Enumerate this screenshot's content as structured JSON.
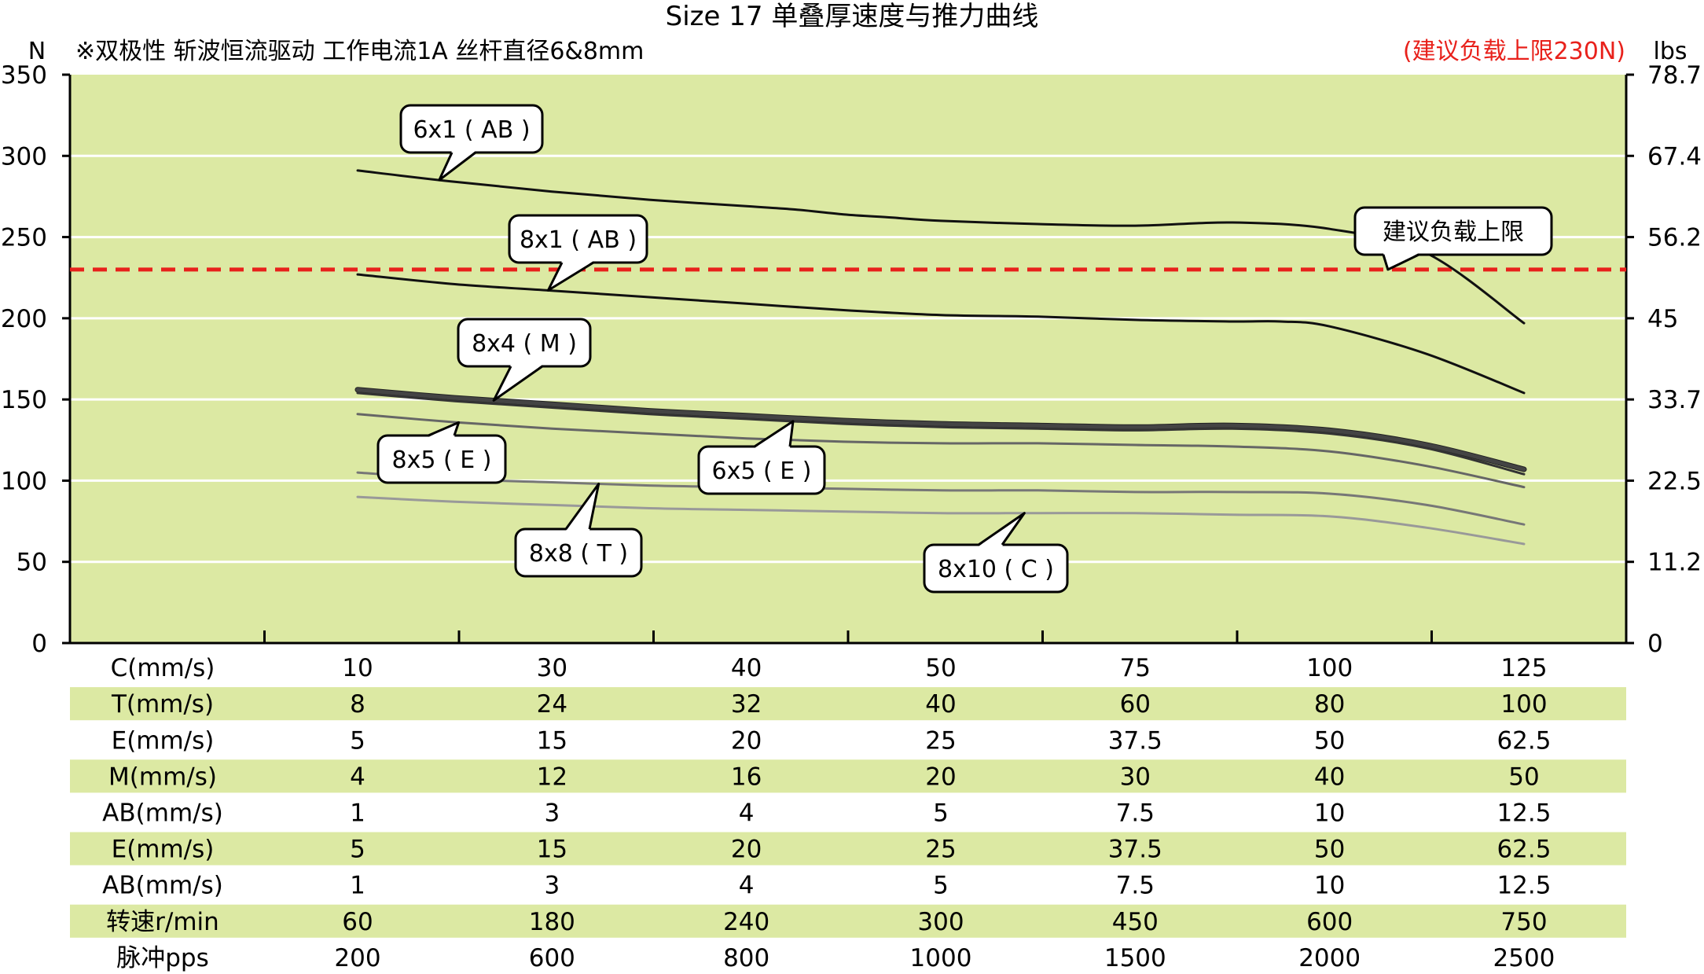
{
  "header": {
    "title": "Size 17 单叠厚速度与推力曲线",
    "subtitle": "※双极性 斩波恒流驱动 工作电流1A 丝杆直径6&8mm",
    "note": "(建议负载上限230N)",
    "left_unit": "N",
    "right_unit": "lbs"
  },
  "colors": {
    "plot_bg": "#dce9a3",
    "row_stripe": "#dce9a3",
    "limit_line": "#e8211b",
    "note_text": "#e8211b",
    "curve_dark": "#111111",
    "curve_m": "#444444",
    "curve_mid": "#666666",
    "curve_light": "#888888",
    "curve_lighter": "#999999"
  },
  "chart_data": {
    "type": "line",
    "ylim": [
      0,
      350
    ],
    "left_ticks": [
      "0",
      "50",
      "100",
      "150",
      "200",
      "250",
      "300",
      "350"
    ],
    "right_ticks": [
      "0",
      "11.2",
      "22.5",
      "33.7",
      "45",
      "56.2",
      "67.4",
      "78.7"
    ],
    "limit_value": 230,
    "limit_label": "建议负载上限",
    "x_columns": 7,
    "series": [
      {
        "name": "6x1 ( AB )",
        "x": [
          0,
          0.5,
          1,
          1.5,
          2,
          2.25,
          2.5,
          2.75,
          3,
          3.5,
          4,
          4.5,
          5,
          5.5,
          6
        ],
        "y": [
          291,
          284,
          278,
          273,
          269,
          267,
          264,
          262,
          260,
          258,
          257,
          259,
          255,
          240,
          197
        ],
        "color": "#111111",
        "width": 3
      },
      {
        "name": "8x1 ( AB )",
        "x": [
          0,
          0.5,
          1,
          1.5,
          2,
          2.5,
          3,
          3.5,
          4,
          4.5,
          4.75,
          5,
          5.5,
          6
        ],
        "y": [
          227,
          221,
          217,
          213,
          209,
          205,
          202,
          201,
          199,
          198,
          198,
          195,
          178,
          154
        ],
        "color": "#111111",
        "width": 3
      },
      {
        "name": "8x4 ( M )",
        "x": [
          0,
          0.5,
          1,
          1.5,
          2,
          2.5,
          3,
          3.5,
          4,
          4.5,
          5,
          5.5,
          6
        ],
        "y": [
          156,
          151,
          147,
          143,
          140,
          137,
          135,
          134,
          133,
          134,
          131,
          122,
          107
        ],
        "color": "#444444",
        "width": 5
      },
      {
        "name": "6x5 ( E )",
        "x": [
          0,
          0.5,
          1,
          1.5,
          2,
          2.5,
          3,
          3.5,
          4,
          4.5,
          5,
          5.5,
          6
        ],
        "y": [
          154,
          149,
          145,
          141,
          138,
          135,
          133,
          132,
          131,
          132,
          129,
          120,
          104
        ],
        "color": "#333333",
        "width": 3
      },
      {
        "name": "8x5 ( E )",
        "x": [
          0,
          0.5,
          1,
          1.5,
          2,
          2.5,
          3,
          3.5,
          4,
          4.5,
          5,
          5.5,
          6
        ],
        "y": [
          141,
          136,
          132,
          129,
          126,
          124,
          123,
          123,
          122,
          121,
          118,
          109,
          96
        ],
        "color": "#666666",
        "width": 3
      },
      {
        "name": "8x8 ( T )",
        "x": [
          0,
          0.5,
          1,
          1.5,
          2,
          2.5,
          3,
          3.5,
          4,
          4.5,
          5,
          5.5,
          6
        ],
        "y": [
          105,
          101,
          99,
          97,
          96,
          95,
          94,
          94,
          93,
          93,
          92,
          85,
          73
        ],
        "color": "#777777",
        "width": 3
      },
      {
        "name": "8x10 ( C )",
        "x": [
          0,
          0.5,
          1,
          1.5,
          2,
          2.5,
          3,
          3.5,
          4,
          4.5,
          5,
          5.5,
          6
        ],
        "y": [
          90,
          87,
          85,
          83,
          82,
          81,
          80,
          80,
          80,
          79,
          78,
          71,
          61
        ],
        "color": "#999999",
        "width": 3
      }
    ],
    "callouts": [
      {
        "label": "6x1 ( AB )",
        "series": 0,
        "at_x": 0.42
      },
      {
        "label": "8x1 ( AB )",
        "series": 1,
        "at_x": 0.98
      },
      {
        "label": "8x4 ( M )",
        "series": 2,
        "at_x": 0.7
      },
      {
        "label": "8x5 ( E )",
        "series": 4,
        "at_x": 0.52
      },
      {
        "label": "6x5 ( E )",
        "series": 3,
        "at_x": 2.24
      },
      {
        "label": "8x8 ( T )",
        "series": 5,
        "at_x": 1.24
      },
      {
        "label": "8x10 ( C )",
        "series": 6,
        "at_x": 3.43
      },
      {
        "label": "建议负载上限",
        "series": -1,
        "at_x": 5.3
      }
    ]
  },
  "table": {
    "rows": [
      {
        "label": "C(mm/s)",
        "values": [
          "10",
          "30",
          "40",
          "50",
          "75",
          "100",
          "125"
        ],
        "shaded": false
      },
      {
        "label": "T(mm/s)",
        "values": [
          "8",
          "24",
          "32",
          "40",
          "60",
          "80",
          "100"
        ],
        "shaded": true
      },
      {
        "label": "E(mm/s)",
        "values": [
          "5",
          "15",
          "20",
          "25",
          "37.5",
          "50",
          "62.5"
        ],
        "shaded": false
      },
      {
        "label": "M(mm/s)",
        "values": [
          "4",
          "12",
          "16",
          "20",
          "30",
          "40",
          "50"
        ],
        "shaded": true
      },
      {
        "label": "AB(mm/s)",
        "values": [
          "1",
          "3",
          "4",
          "5",
          "7.5",
          "10",
          "12.5"
        ],
        "shaded": false
      },
      {
        "label": "E(mm/s)",
        "values": [
          "5",
          "15",
          "20",
          "25",
          "37.5",
          "50",
          "62.5"
        ],
        "shaded": true
      },
      {
        "label": "AB(mm/s)",
        "values": [
          "1",
          "3",
          "4",
          "5",
          "7.5",
          "10",
          "12.5"
        ],
        "shaded": false
      },
      {
        "label": "转速r/min",
        "values": [
          "60",
          "180",
          "240",
          "300",
          "450",
          "600",
          "750"
        ],
        "shaded": true
      },
      {
        "label": "脉冲pps",
        "values": [
          "200",
          "600",
          "800",
          "1000",
          "1500",
          "2000",
          "2500"
        ],
        "shaded": false
      }
    ]
  }
}
